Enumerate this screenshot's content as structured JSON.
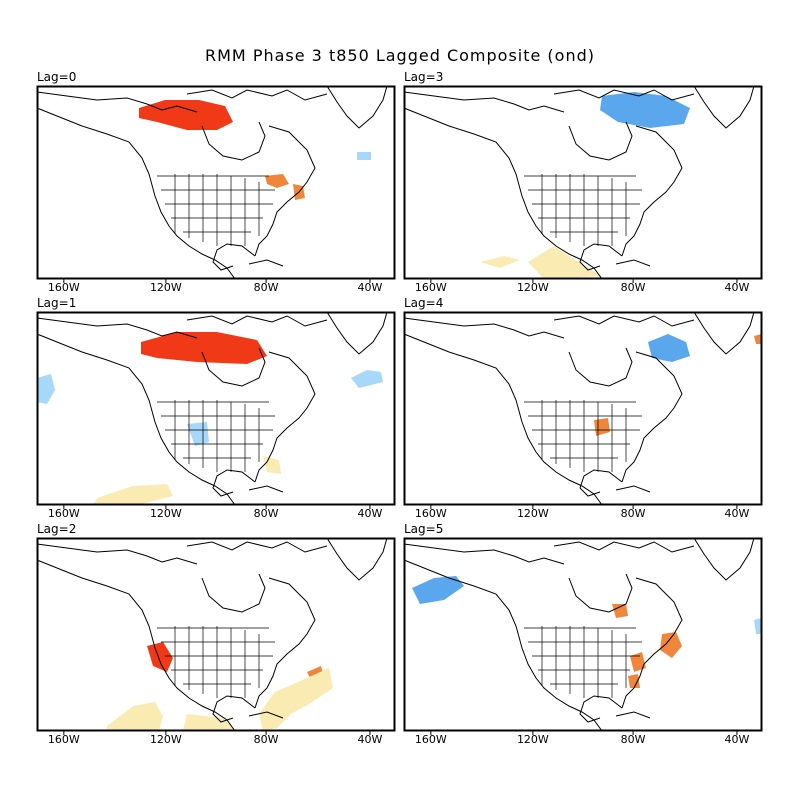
{
  "title": "RMM Phase 3 t850 Lagged Composite (ond)",
  "lon_ticks": [
    "160W",
    "120W",
    "80W",
    "40W"
  ],
  "colors": {
    "warm_strong": "#f03a17",
    "warm": "#f0863c",
    "warm_light": "#faebb3",
    "cold": "#5aa7ee",
    "cold_light": "#a7d8fa",
    "land_outline": "#000000"
  },
  "panels": [
    {
      "label": "Lag=0",
      "anomalies": [
        {
          "level": "warm_strong",
          "region": "northern Canada near Great Slave Lake"
        },
        {
          "level": "warm",
          "region": "Great Lakes / Ontario"
        },
        {
          "level": "warm",
          "region": "New England coast"
        },
        {
          "level": "cold_light",
          "region": "Labrador Sea"
        }
      ]
    },
    {
      "label": "Lag=3",
      "anomalies": [
        {
          "level": "cold",
          "region": "Hudson Bay / northern Quebec"
        },
        {
          "level": "warm_light",
          "region": "eastern Pacific south of Mexico"
        }
      ]
    },
    {
      "label": "Lag=1",
      "anomalies": [
        {
          "level": "warm_strong",
          "region": "northern Canada"
        },
        {
          "level": "cold_light",
          "region": "Gulf of Alaska"
        },
        {
          "level": "cold_light",
          "region": "Labrador Sea"
        },
        {
          "level": "cold_light",
          "region": "southwest US"
        },
        {
          "level": "warm_light",
          "region": "Caribbean"
        },
        {
          "level": "warm_light",
          "region": "tropical eastern Pacific"
        }
      ]
    },
    {
      "label": "Lag=4",
      "anomalies": [
        {
          "level": "cold",
          "region": "Quebec"
        },
        {
          "level": "warm",
          "region": "Ohio Valley"
        },
        {
          "level": "warm",
          "region": "near Greenland"
        }
      ]
    },
    {
      "label": "Lag=2",
      "anomalies": [
        {
          "level": "warm_strong",
          "region": "California coast"
        },
        {
          "level": "warm",
          "region": "western Atlantic"
        },
        {
          "level": "warm_light",
          "region": "western Atlantic / Caribbean"
        },
        {
          "level": "warm_light",
          "region": "tropical eastern Pacific"
        }
      ]
    },
    {
      "label": "Lag=5",
      "anomalies": [
        {
          "level": "cold",
          "region": "Alaska"
        },
        {
          "level": "warm",
          "region": "Great Lakes"
        },
        {
          "level": "warm",
          "region": "US east coast"
        },
        {
          "level": "warm",
          "region": "western Atlantic"
        },
        {
          "level": "cold_light",
          "region": "mid Atlantic"
        }
      ]
    }
  ]
}
